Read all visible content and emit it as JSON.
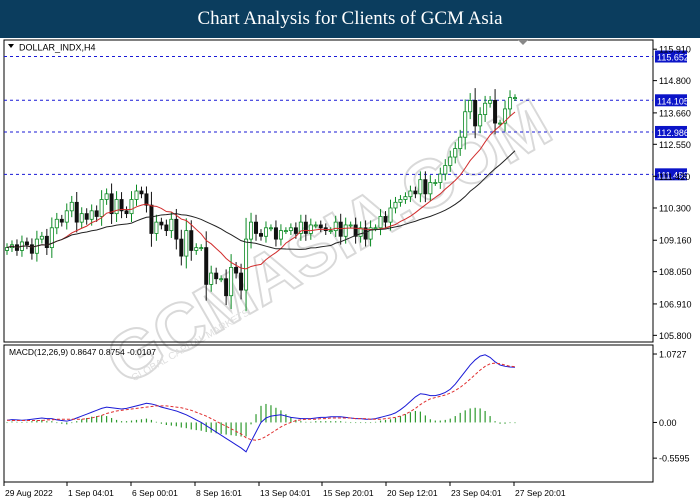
{
  "header": {
    "title": "Chart Analysis for Clients of GCM Asia"
  },
  "watermark": {
    "text": "GCMASIA.COM",
    "subtext": "GLOBAL CAPITAL MARKETS"
  },
  "colors": {
    "header_bg": "#0b3d5e",
    "bull_candle": "#0a8a22",
    "bear_candle": "#111111",
    "ma_fast": "#d12c2c",
    "ma_slow": "#222222",
    "level_line": "#1a1ad6",
    "level_label_bg": "#0b14c8",
    "macd_line": "#1a1ad6",
    "signal_line": "#e03030",
    "histogram": "#2e9a2e"
  },
  "chart_data": [
    {
      "type": "candlestick",
      "title": "DOLLAR_INDX,H4",
      "ylim": [
        105.6,
        116.2
      ],
      "y_ticks": [
        "115.910",
        "114.800",
        "113.660",
        "112.550",
        "111.420",
        "110.300",
        "109.160",
        "108.050",
        "106.910",
        "105.800"
      ],
      "x_ticks": [
        "29 Aug 2022",
        "1 Sep 04:01",
        "6 Sep 00:01",
        "8 Sep 16:01",
        "13 Sep 04:01",
        "15 Sep 20:01",
        "20 Sep 12:01",
        "23 Sep 04:01",
        "27 Sep 20:01"
      ],
      "levels": [
        "115.652",
        "114.105",
        "112.986",
        "111.489"
      ],
      "close": [
        108.9,
        109.0,
        108.8,
        109.1,
        109.0,
        108.7,
        109.2,
        109.3,
        108.9,
        109.6,
        109.9,
        109.8,
        110.2,
        110.5,
        109.8,
        110.1,
        109.9,
        110.2,
        110.0,
        110.6,
        110.8,
        110.1,
        110.6,
        110.2,
        110.1,
        110.6,
        110.9,
        110.8,
        110.4,
        109.4,
        109.8,
        109.7,
        109.5,
        109.9,
        109.2,
        108.6,
        109.5,
        108.8,
        108.9,
        108.9,
        107.6,
        108.0,
        107.8,
        107.8,
        107.2,
        108.2,
        108.0,
        107.4,
        109.2,
        109.8,
        109.4,
        109.3,
        109.6,
        109.6,
        109.2,
        109.5,
        109.5,
        109.6,
        109.4,
        109.8,
        109.4,
        109.7,
        109.7,
        109.6,
        109.5,
        109.5,
        109.8,
        109.3,
        109.7,
        109.7,
        109.3,
        109.6,
        109.2,
        109.6,
        109.6,
        110.0,
        109.8,
        110.3,
        110.5,
        110.6,
        110.7,
        110.9,
        110.8,
        111.3,
        110.8,
        111.2,
        111.2,
        111.5,
        111.8,
        112.1,
        112.4,
        112.8,
        113.7,
        114.1,
        113.2,
        113.6,
        114.0,
        114.1,
        113.3,
        113.3,
        113.8,
        114.2,
        114.2
      ],
      "series": [
        {
          "name": "",
          "values": []
        }
      ]
    },
    {
      "type": "line",
      "title": "MACD(12,26,9) 0.8647 0.8754 -0.0107",
      "ylim": [
        -0.62,
        1.12
      ],
      "y_ticks": [
        "1.0727",
        "0.00",
        "-0.5595"
      ],
      "macd": [
        0.035,
        0.045,
        0.04,
        0.035,
        0.04,
        0.05,
        0.06,
        0.07,
        0.06,
        0.06,
        0.04,
        0.03,
        0.02,
        0.04,
        0.07,
        0.1,
        0.13,
        0.16,
        0.19,
        0.22,
        0.24,
        0.23,
        0.22,
        0.21,
        0.22,
        0.24,
        0.26,
        0.28,
        0.3,
        0.29,
        0.27,
        0.24,
        0.22,
        0.2,
        0.18,
        0.15,
        0.12,
        0.08,
        0.04,
        0.0,
        -0.05,
        -0.1,
        -0.15,
        -0.2,
        -0.25,
        -0.3,
        -0.35,
        -0.4,
        -0.46,
        -0.3,
        -0.15,
        0.0,
        0.07,
        0.1,
        0.11,
        0.12,
        0.1,
        0.08,
        0.07,
        0.06,
        0.06,
        0.06,
        0.07,
        0.08,
        0.08,
        0.09,
        0.09,
        0.09,
        0.08,
        0.07,
        0.06,
        0.06,
        0.05,
        0.05,
        0.06,
        0.08,
        0.1,
        0.12,
        0.15,
        0.2,
        0.26,
        0.33,
        0.4,
        0.45,
        0.44,
        0.42,
        0.42,
        0.44,
        0.47,
        0.52,
        0.6,
        0.7,
        0.8,
        0.9,
        0.98,
        1.04,
        1.06,
        1.02,
        0.95,
        0.9,
        0.88,
        0.87,
        0.8647
      ],
      "signal": [
        0.035,
        0.03,
        0.03,
        0.03,
        0.03,
        0.03,
        0.03,
        0.03,
        0.04,
        0.04,
        0.05,
        0.05,
        0.05,
        0.05,
        0.05,
        0.05,
        0.06,
        0.07,
        0.09,
        0.11,
        0.14,
        0.16,
        0.18,
        0.19,
        0.2,
        0.21,
        0.22,
        0.23,
        0.24,
        0.25,
        0.26,
        0.26,
        0.26,
        0.25,
        0.24,
        0.23,
        0.21,
        0.19,
        0.16,
        0.13,
        0.1,
        0.06,
        0.02,
        -0.02,
        -0.06,
        -0.1,
        -0.14,
        -0.18,
        -0.24,
        -0.27,
        -0.28,
        -0.26,
        -0.22,
        -0.17,
        -0.12,
        -0.07,
        -0.03,
        0.0,
        0.03,
        0.04,
        0.05,
        0.05,
        0.05,
        0.06,
        0.06,
        0.07,
        0.07,
        0.07,
        0.07,
        0.07,
        0.06,
        0.06,
        0.06,
        0.05,
        0.05,
        0.05,
        0.06,
        0.07,
        0.08,
        0.1,
        0.13,
        0.17,
        0.22,
        0.28,
        0.33,
        0.37,
        0.39,
        0.41,
        0.43,
        0.46,
        0.5,
        0.55,
        0.61,
        0.68,
        0.75,
        0.82,
        0.88,
        0.92,
        0.93,
        0.92,
        0.9,
        0.88,
        0.8754
      ]
    }
  ]
}
